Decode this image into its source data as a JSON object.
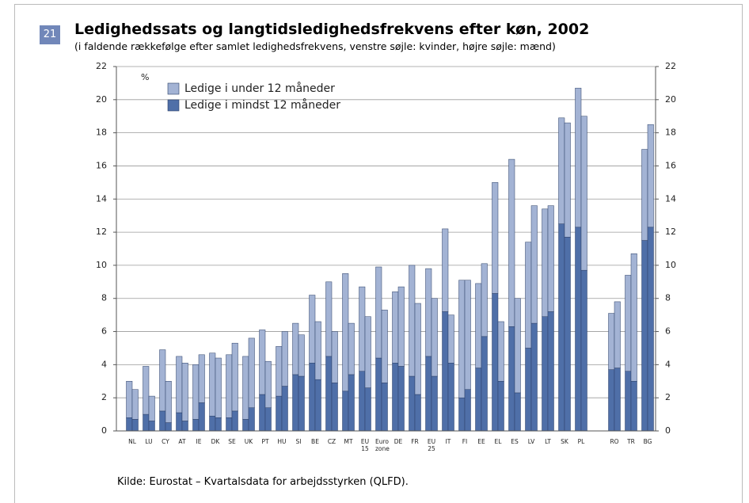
{
  "figure_number": "21",
  "chart_data": {
    "type": "stacked_paired_bar",
    "title": "Ledighedssats og langtidsledighedsfrekvens efter køn, 2002",
    "subtitle": "(i faldende rækkefølge efter samlet ledighedsfrekvens, venstre søjle: kvinder, højre søjle: mænd)",
    "y_unit_label": "%",
    "source": "Kilde: Eurostat – Kvartalsdata for arbejdsstyrken (QLFD).",
    "categories": [
      "NL",
      "LU",
      "CY",
      "AT",
      "IE",
      "DK",
      "SE",
      "UK",
      "PT",
      "HU",
      "SI",
      "BE",
      "CZ",
      "MT",
      "EU 15",
      "Euro zone",
      "DE",
      "FR",
      "EU 25",
      "IT",
      "FI",
      "EE",
      "EL",
      "ES",
      "LV",
      "LT",
      "SK",
      "PL",
      null,
      "RO",
      "TR",
      "BG"
    ],
    "series": [
      {
        "name": "Ledige i mindst 12 måneder",
        "color": "#4f6fa8",
        "values": [
          [
            0.8,
            0.7
          ],
          [
            1.0,
            0.6
          ],
          [
            1.2,
            0.5
          ],
          [
            1.1,
            0.6
          ],
          [
            0.7,
            1.7
          ],
          [
            0.9,
            0.8
          ],
          [
            0.8,
            1.2
          ],
          [
            0.7,
            1.4
          ],
          [
            2.2,
            1.4
          ],
          [
            2.1,
            2.7
          ],
          [
            3.4,
            3.3
          ],
          [
            4.1,
            3.1
          ],
          [
            4.5,
            2.9
          ],
          [
            2.4,
            3.4
          ],
          [
            3.6,
            2.6
          ],
          [
            4.4,
            2.9
          ],
          [
            4.1,
            3.9
          ],
          [
            3.3,
            2.2
          ],
          [
            4.5,
            3.3
          ],
          [
            7.2,
            4.1
          ],
          [
            2.0,
            2.5
          ],
          [
            3.8,
            5.7
          ],
          [
            8.3,
            3.0
          ],
          [
            6.3,
            2.3
          ],
          [
            5.0,
            6.5
          ],
          [
            6.9,
            7.2
          ],
          [
            12.5,
            11.7
          ],
          [
            12.3,
            9.7
          ],
          [
            null,
            null
          ],
          [
            3.7,
            3.8
          ],
          [
            3.6,
            3.0
          ],
          [
            11.5,
            12.3
          ]
        ]
      },
      {
        "name": "Ledige i under 12 måneder",
        "color": "#a3b3d4",
        "values": [
          [
            2.2,
            1.8
          ],
          [
            2.9,
            1.5
          ],
          [
            3.7,
            2.5
          ],
          [
            3.4,
            3.5
          ],
          [
            3.3,
            2.9
          ],
          [
            3.8,
            3.6
          ],
          [
            3.8,
            4.1
          ],
          [
            3.8,
            4.2
          ],
          [
            3.9,
            2.8
          ],
          [
            3.0,
            3.3
          ],
          [
            3.1,
            2.5
          ],
          [
            4.1,
            3.5
          ],
          [
            4.5,
            3.1
          ],
          [
            7.1,
            3.1
          ],
          [
            5.1,
            4.3
          ],
          [
            5.5,
            4.4
          ],
          [
            4.3,
            4.8
          ],
          [
            6.7,
            5.5
          ],
          [
            5.3,
            4.7
          ],
          [
            5.0,
            2.9
          ],
          [
            7.1,
            6.6
          ],
          [
            5.1,
            4.4
          ],
          [
            6.7,
            3.6
          ],
          [
            10.1,
            5.7
          ],
          [
            6.4,
            7.1
          ],
          [
            6.5,
            6.4
          ],
          [
            6.4,
            6.9
          ],
          [
            8.4,
            9.3
          ],
          [
            null,
            null
          ],
          [
            3.4,
            4.0
          ],
          [
            5.8,
            7.7
          ],
          [
            5.5,
            6.2
          ]
        ]
      }
    ],
    "legend_order": [
      1,
      0
    ],
    "ylim": [
      0,
      22
    ],
    "yticks": [
      0,
      2,
      4,
      6,
      8,
      10,
      12,
      14,
      16,
      18,
      20,
      22
    ],
    "grid": true
  }
}
